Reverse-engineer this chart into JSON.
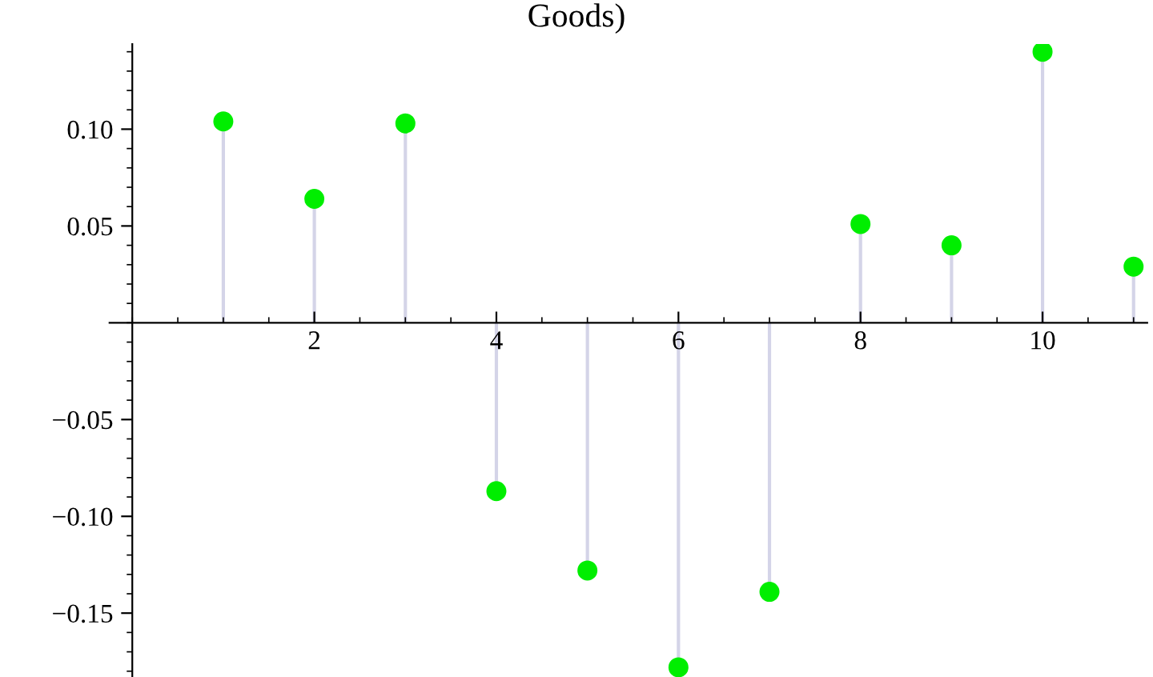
{
  "chart_data": {
    "type": "lollipop",
    "title": "Goods)",
    "x": [
      1,
      2,
      3,
      4,
      5,
      6,
      7,
      8,
      9,
      10,
      11
    ],
    "series": [
      {
        "color": "#00ee00",
        "values": [
          0.104,
          0.064,
          0.103,
          -0.087,
          -0.128,
          -0.178,
          -0.139,
          0.051,
          0.04,
          0.14,
          0.029
        ]
      }
    ],
    "xlim": [
      -0.25,
      11.15
    ],
    "ylim": [
      -0.183,
      0.144
    ],
    "xticks": [
      2,
      4,
      6,
      8,
      10
    ],
    "yticks": [
      {
        "value": -0.15,
        "label": "−0.15"
      },
      {
        "value": -0.1,
        "label": "−0.10"
      },
      {
        "value": -0.05,
        "label": "−0.05"
      },
      {
        "value": 0.05,
        "label": "0.05"
      },
      {
        "value": 0.1,
        "label": "0.10"
      }
    ],
    "marker": "circle",
    "grid": false,
    "legend": false
  }
}
